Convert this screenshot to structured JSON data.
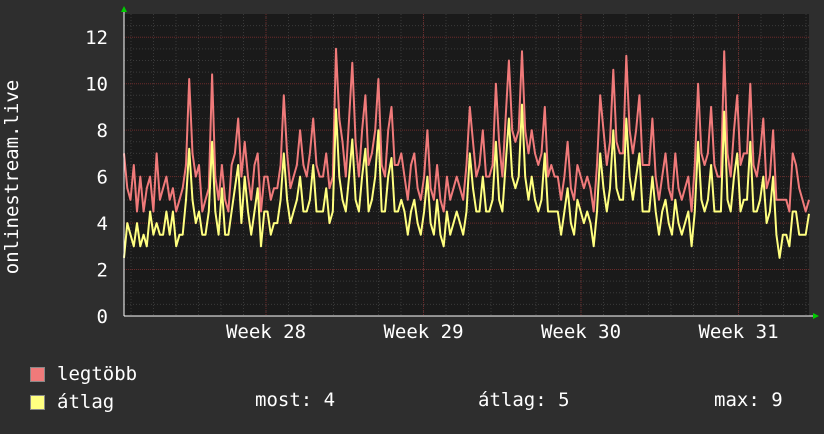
{
  "chart_data": {
    "type": "line",
    "ylabel": "onlinestream.live",
    "ylim": [
      0,
      13
    ],
    "yticks": [
      0,
      2,
      4,
      6,
      8,
      10,
      12
    ],
    "xticks": [
      "Week 28",
      "Week 29",
      "Week 30",
      "Week 31"
    ],
    "grid": true,
    "colors": {
      "background": "#2e2e2e",
      "plot_bg": "#1a1a1a",
      "max": "#f07a7a",
      "avg": "#ffff80",
      "axis": "#ffffff",
      "arrow": "#00cc00"
    },
    "series": [
      {
        "name": "legtöbb",
        "color": "#f07a7a",
        "values": [
          7,
          5.5,
          5,
          6.5,
          4.5,
          6,
          4.5,
          5.5,
          6,
          4.5,
          7,
          5,
          5.5,
          6,
          5,
          5.5,
          4.5,
          5,
          5.5,
          6.5,
          10.2,
          7,
          6,
          6.5,
          4.5,
          5,
          5.5,
          10.4,
          6,
          5,
          6.5,
          5,
          4.5,
          6.5,
          7,
          8.5,
          6,
          7.5,
          6,
          5,
          6.5,
          7,
          4.5,
          6,
          6,
          5,
          5.5,
          5.5,
          6.5,
          9.5,
          7,
          5.5,
          6,
          6.5,
          8,
          6.5,
          6,
          7,
          8.5,
          6.5,
          6,
          6,
          7,
          5.5,
          6,
          11.5,
          8.5,
          7.5,
          6,
          8.5,
          10.9,
          7.5,
          6,
          8,
          9.5,
          6.5,
          7,
          8,
          10.2,
          6.5,
          6,
          8,
          9,
          6.5,
          6.5,
          7,
          6,
          5,
          6.5,
          7,
          5.5,
          5,
          6,
          8,
          5.5,
          5,
          6.5,
          5,
          4.5,
          6,
          5,
          5.5,
          6,
          5.5,
          5,
          6.5,
          9,
          7.5,
          6,
          6.5,
          8,
          6,
          6,
          6.5,
          10,
          7.5,
          6,
          8.5,
          11,
          8,
          7.5,
          8,
          11.4,
          8,
          7,
          8,
          7,
          6.5,
          7,
          9,
          6,
          6.5,
          6,
          6,
          5,
          6,
          7.5,
          5.5,
          5,
          6.5,
          6,
          5.5,
          6,
          5.5,
          4.5,
          6.5,
          9.5,
          8,
          6.5,
          7.5,
          10.6,
          7.5,
          7,
          7,
          11.2,
          8,
          7,
          8,
          9.5,
          6.5,
          6.5,
          6.5,
          8.5,
          6,
          5,
          6,
          7,
          5.5,
          5,
          7,
          5.5,
          5,
          5.5,
          6,
          4.5,
          6.5,
          10,
          7,
          6.5,
          7,
          9,
          6.5,
          6,
          6,
          11.4,
          7,
          6,
          8,
          9.5,
          6.5,
          7,
          7,
          10,
          6.5,
          6,
          7,
          8.5,
          5.5,
          6,
          8,
          5,
          5,
          5,
          5,
          4.5,
          7,
          6.5,
          5.5,
          5,
          4.5,
          5
        ]
      },
      {
        "name": "átlag",
        "color": "#ffff80",
        "values": [
          2.5,
          4,
          3.5,
          3,
          4,
          3,
          3.5,
          3,
          4.5,
          3.5,
          4,
          3.5,
          3.5,
          4.5,
          3.5,
          4.5,
          3,
          3.5,
          3.5,
          5,
          7.2,
          5,
          4,
          4.5,
          3.5,
          3.5,
          4.5,
          7.5,
          4.5,
          3.5,
          5.5,
          3.5,
          3.5,
          4.5,
          5.5,
          6.5,
          4,
          6,
          4.5,
          3.5,
          4.5,
          5.5,
          3,
          4.5,
          4.5,
          3.5,
          4,
          4,
          5,
          7,
          5,
          4,
          4.5,
          5,
          6,
          4.5,
          4.5,
          5,
          6.5,
          4.5,
          4.5,
          4.5,
          5.5,
          4,
          4.5,
          8.9,
          6,
          5,
          4.5,
          6,
          7.6,
          5,
          4.5,
          6,
          7.2,
          4.5,
          5,
          6,
          8,
          4.5,
          4.5,
          6,
          6.8,
          4.5,
          4.5,
          5,
          4.5,
          3.5,
          4.5,
          5,
          4,
          3.5,
          4.5,
          6,
          4,
          3.5,
          5,
          3.5,
          3,
          4.5,
          3.5,
          4,
          4.5,
          4,
          3.5,
          4.5,
          7,
          5.5,
          4.5,
          4.5,
          6,
          4.5,
          4.5,
          5,
          7.5,
          5,
          4.5,
          6.5,
          8.5,
          6,
          5.5,
          6,
          9.1,
          6,
          5,
          6,
          5,
          4.5,
          5,
          7,
          4.5,
          4.5,
          4.5,
          4.5,
          3.5,
          4.5,
          5.5,
          4,
          3.5,
          5,
          4.5,
          4,
          4.5,
          4,
          3,
          4.5,
          7,
          5.5,
          4.5,
          5.5,
          8,
          5.5,
          5,
          5,
          8.5,
          6,
          5,
          6,
          7,
          4.5,
          4.5,
          4.5,
          6,
          4.5,
          3.5,
          4.5,
          5,
          4,
          3.5,
          5,
          4,
          3.5,
          4,
          4.5,
          3,
          4.5,
          7.5,
          5,
          4.5,
          5,
          6.5,
          4.5,
          4.5,
          4.5,
          8.8,
          5,
          4.5,
          6,
          7,
          4.5,
          5,
          5,
          7.5,
          4.5,
          4.5,
          5,
          6,
          4,
          4.5,
          6,
          3.5,
          2.5,
          3.5,
          3.5,
          3,
          4.5,
          4.5,
          3.5,
          3.5,
          3.5,
          4.4
        ]
      }
    ]
  },
  "legend": {
    "items": [
      {
        "label": "legtöbb",
        "color": "#f07a7a"
      },
      {
        "label": "átlag",
        "color": "#ffff80"
      }
    ]
  },
  "stats": {
    "now": "most: 4",
    "avg": "átlag: 5",
    "max": "max: 9"
  }
}
